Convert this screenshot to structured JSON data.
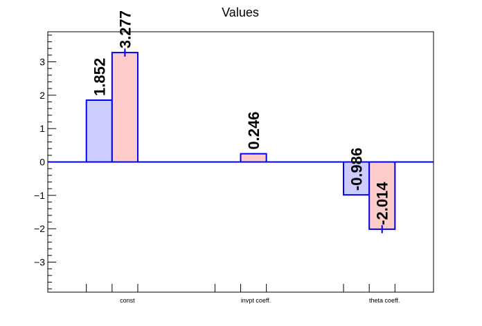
{
  "chart_data": {
    "type": "bar",
    "title": "Values",
    "categories": [
      "const",
      "invpt coeff.",
      "theta coeff."
    ],
    "series": [
      {
        "values": [
          1.852,
          0,
          -0.986
        ],
        "color": "#ccccff",
        "errors": [
          0,
          0,
          0
        ]
      },
      {
        "values": [
          3.277,
          0.246,
          -2.014
        ],
        "color": "#ffcccc",
        "errors": [
          0.12,
          0.02,
          0.12
        ]
      }
    ],
    "data_labels": [
      [
        "1.852",
        "",
        "-0.986"
      ],
      [
        "3.277",
        "0.246",
        "-2.014"
      ]
    ],
    "ylim": [
      -3.9,
      3.9
    ],
    "yticks": [
      -3,
      -2,
      -1,
      0,
      1,
      2,
      3
    ],
    "ytick_labels": [
      "−3",
      "−2",
      "−1",
      "0",
      "1",
      "2",
      "3"
    ],
    "xlabel": "",
    "ylabel": "",
    "grid": false,
    "outline_color": "#0000ee"
  }
}
